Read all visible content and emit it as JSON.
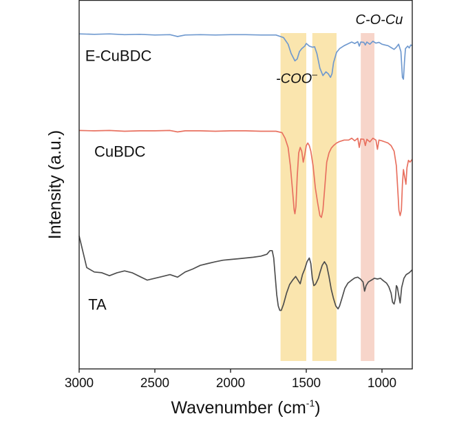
{
  "chart_data": {
    "type": "line",
    "title": "",
    "xlabel": "Wavenumber (cm",
    "xlabel_sup": "-1",
    "xlabel_close": ")",
    "ylabel": "Intensity (a.u.)",
    "xlim": [
      3000,
      800
    ],
    "x_reversed": true,
    "ylim": [
      0,
      1
    ],
    "x_ticks": [
      3000,
      2500,
      2000,
      1500,
      1000
    ],
    "y_ticks_shown": false,
    "grid": false,
    "series": [
      {
        "name": "E-CuBDC",
        "color": "#6f99cf",
        "points": [
          [
            3000,
            0.908
          ],
          [
            2900,
            0.907
          ],
          [
            2800,
            0.908
          ],
          [
            2700,
            0.906
          ],
          [
            2600,
            0.907
          ],
          [
            2500,
            0.905
          ],
          [
            2400,
            0.906
          ],
          [
            2350,
            0.901
          ],
          [
            2300,
            0.905
          ],
          [
            2200,
            0.906
          ],
          [
            2100,
            0.905
          ],
          [
            2000,
            0.906
          ],
          [
            1900,
            0.906
          ],
          [
            1800,
            0.905
          ],
          [
            1700,
            0.905
          ],
          [
            1650,
            0.898
          ],
          [
            1620,
            0.88
          ],
          [
            1600,
            0.855
          ],
          [
            1575,
            0.835
          ],
          [
            1560,
            0.84
          ],
          [
            1545,
            0.86
          ],
          [
            1530,
            0.868
          ],
          [
            1510,
            0.875
          ],
          [
            1500,
            0.882
          ],
          [
            1480,
            0.875
          ],
          [
            1460,
            0.872
          ],
          [
            1445,
            0.873
          ],
          [
            1430,
            0.855
          ],
          [
            1410,
            0.815
          ],
          [
            1390,
            0.795
          ],
          [
            1370,
            0.805
          ],
          [
            1355,
            0.8
          ],
          [
            1340,
            0.79
          ],
          [
            1330,
            0.8
          ],
          [
            1320,
            0.83
          ],
          [
            1300,
            0.858
          ],
          [
            1280,
            0.868
          ],
          [
            1250,
            0.876
          ],
          [
            1220,
            0.882
          ],
          [
            1200,
            0.886
          ],
          [
            1180,
            0.882
          ],
          [
            1160,
            0.887
          ],
          [
            1150,
            0.875
          ],
          [
            1140,
            0.886
          ],
          [
            1120,
            0.885
          ],
          [
            1110,
            0.878
          ],
          [
            1100,
            0.886
          ],
          [
            1080,
            0.88
          ],
          [
            1060,
            0.888
          ],
          [
            1040,
            0.883
          ],
          [
            1020,
            0.885
          ],
          [
            1000,
            0.88
          ],
          [
            980,
            0.878
          ],
          [
            960,
            0.876
          ],
          [
            940,
            0.871
          ],
          [
            920,
            0.866
          ],
          [
            905,
            0.872
          ],
          [
            890,
            0.88
          ],
          [
            875,
            0.86
          ],
          [
            865,
            0.79
          ],
          [
            858,
            0.785
          ],
          [
            852,
            0.83
          ],
          [
            845,
            0.868
          ],
          [
            830,
            0.875
          ],
          [
            820,
            0.87
          ],
          [
            810,
            0.878
          ],
          [
            800,
            0.876
          ]
        ]
      },
      {
        "name": "CuBDC",
        "color": "#e8705f",
        "points": [
          [
            3000,
            0.646
          ],
          [
            2900,
            0.645
          ],
          [
            2800,
            0.646
          ],
          [
            2700,
            0.644
          ],
          [
            2600,
            0.645
          ],
          [
            2500,
            0.645
          ],
          [
            2400,
            0.646
          ],
          [
            2350,
            0.642
          ],
          [
            2300,
            0.645
          ],
          [
            2200,
            0.645
          ],
          [
            2100,
            0.644
          ],
          [
            2000,
            0.645
          ],
          [
            1900,
            0.645
          ],
          [
            1800,
            0.644
          ],
          [
            1700,
            0.644
          ],
          [
            1660,
            0.64
          ],
          [
            1640,
            0.625
          ],
          [
            1620,
            0.6
          ],
          [
            1605,
            0.55
          ],
          [
            1590,
            0.48
          ],
          [
            1580,
            0.43
          ],
          [
            1575,
            0.42
          ],
          [
            1568,
            0.44
          ],
          [
            1560,
            0.52
          ],
          [
            1550,
            0.585
          ],
          [
            1540,
            0.6
          ],
          [
            1530,
            0.59
          ],
          [
            1520,
            0.56
          ],
          [
            1510,
            0.58
          ],
          [
            1500,
            0.605
          ],
          [
            1490,
            0.612
          ],
          [
            1480,
            0.605
          ],
          [
            1470,
            0.59
          ],
          [
            1455,
            0.55
          ],
          [
            1440,
            0.49
          ],
          [
            1425,
            0.45
          ],
          [
            1410,
            0.415
          ],
          [
            1400,
            0.41
          ],
          [
            1390,
            0.43
          ],
          [
            1378,
            0.49
          ],
          [
            1365,
            0.56
          ],
          [
            1350,
            0.585
          ],
          [
            1335,
            0.598
          ],
          [
            1320,
            0.605
          ],
          [
            1300,
            0.612
          ],
          [
            1280,
            0.616
          ],
          [
            1250,
            0.62
          ],
          [
            1220,
            0.62
          ],
          [
            1200,
            0.625
          ],
          [
            1180,
            0.618
          ],
          [
            1160,
            0.625
          ],
          [
            1150,
            0.6
          ],
          [
            1140,
            0.623
          ],
          [
            1120,
            0.622
          ],
          [
            1110,
            0.605
          ],
          [
            1100,
            0.622
          ],
          [
            1080,
            0.615
          ],
          [
            1060,
            0.625
          ],
          [
            1040,
            0.62
          ],
          [
            1030,
            0.595
          ],
          [
            1020,
            0.62
          ],
          [
            1000,
            0.618
          ],
          [
            980,
            0.615
          ],
          [
            960,
            0.612
          ],
          [
            940,
            0.605
          ],
          [
            920,
            0.59
          ],
          [
            905,
            0.55
          ],
          [
            895,
            0.48
          ],
          [
            888,
            0.43
          ],
          [
            880,
            0.415
          ],
          [
            872,
            0.43
          ],
          [
            865,
            0.5
          ],
          [
            858,
            0.54
          ],
          [
            850,
            0.52
          ],
          [
            842,
            0.5
          ],
          [
            835,
            0.545
          ],
          [
            825,
            0.565
          ],
          [
            815,
            0.56
          ],
          [
            800,
            0.568
          ]
        ]
      },
      {
        "name": "TA",
        "color": "#4d4d4d",
        "points": [
          [
            3000,
            0.36
          ],
          [
            2950,
            0.274
          ],
          [
            2900,
            0.262
          ],
          [
            2850,
            0.26
          ],
          [
            2800,
            0.252
          ],
          [
            2750,
            0.26
          ],
          [
            2700,
            0.265
          ],
          [
            2650,
            0.26
          ],
          [
            2600,
            0.25
          ],
          [
            2550,
            0.24
          ],
          [
            2500,
            0.245
          ],
          [
            2450,
            0.25
          ],
          [
            2400,
            0.255
          ],
          [
            2350,
            0.248
          ],
          [
            2300,
            0.262
          ],
          [
            2250,
            0.27
          ],
          [
            2200,
            0.28
          ],
          [
            2150,
            0.285
          ],
          [
            2100,
            0.29
          ],
          [
            2050,
            0.294
          ],
          [
            2000,
            0.296
          ],
          [
            1950,
            0.298
          ],
          [
            1900,
            0.3
          ],
          [
            1850,
            0.302
          ],
          [
            1800,
            0.305
          ],
          [
            1760,
            0.31
          ],
          [
            1740,
            0.32
          ],
          [
            1725,
            0.32
          ],
          [
            1715,
            0.3
          ],
          [
            1705,
            0.25
          ],
          [
            1695,
            0.2
          ],
          [
            1685,
            0.17
          ],
          [
            1675,
            0.158
          ],
          [
            1665,
            0.158
          ],
          [
            1650,
            0.175
          ],
          [
            1630,
            0.205
          ],
          [
            1610,
            0.228
          ],
          [
            1590,
            0.24
          ],
          [
            1570,
            0.25
          ],
          [
            1555,
            0.24
          ],
          [
            1540,
            0.23
          ],
          [
            1525,
            0.255
          ],
          [
            1510,
            0.27
          ],
          [
            1495,
            0.29
          ],
          [
            1480,
            0.3
          ],
          [
            1470,
            0.285
          ],
          [
            1460,
            0.245
          ],
          [
            1450,
            0.225
          ],
          [
            1440,
            0.228
          ],
          [
            1430,
            0.236
          ],
          [
            1420,
            0.245
          ],
          [
            1410,
            0.26
          ],
          [
            1395,
            0.28
          ],
          [
            1380,
            0.29
          ],
          [
            1365,
            0.28
          ],
          [
            1350,
            0.25
          ],
          [
            1335,
            0.215
          ],
          [
            1320,
            0.19
          ],
          [
            1305,
            0.17
          ],
          [
            1290,
            0.162
          ],
          [
            1280,
            0.17
          ],
          [
            1265,
            0.19
          ],
          [
            1245,
            0.218
          ],
          [
            1225,
            0.232
          ],
          [
            1200,
            0.24
          ],
          [
            1180,
            0.246
          ],
          [
            1160,
            0.248
          ],
          [
            1140,
            0.242
          ],
          [
            1125,
            0.235
          ],
          [
            1115,
            0.21
          ],
          [
            1105,
            0.225
          ],
          [
            1090,
            0.235
          ],
          [
            1070,
            0.24
          ],
          [
            1050,
            0.245
          ],
          [
            1030,
            0.243
          ],
          [
            1010,
            0.245
          ],
          [
            990,
            0.238
          ],
          [
            970,
            0.232
          ],
          [
            955,
            0.222
          ],
          [
            940,
            0.205
          ],
          [
            930,
            0.18
          ],
          [
            920,
            0.175
          ],
          [
            912,
            0.19
          ],
          [
            905,
            0.225
          ],
          [
            898,
            0.22
          ],
          [
            890,
            0.2
          ],
          [
            880,
            0.178
          ],
          [
            870,
            0.22
          ],
          [
            855,
            0.245
          ],
          [
            840,
            0.255
          ],
          [
            820,
            0.26
          ],
          [
            800,
            0.268
          ]
        ]
      }
    ],
    "highlight_bands": [
      {
        "from": 1670,
        "to": 1500,
        "color": "#f5d06b",
        "opacity": 0.55
      },
      {
        "from": 1460,
        "to": 1300,
        "color": "#f5d06b",
        "opacity": 0.55
      },
      {
        "from": 1140,
        "to": 1050,
        "color": "#f2b9a6",
        "opacity": 0.6
      }
    ],
    "series_labels": [
      {
        "text": "E-CuBDC",
        "x": 2960,
        "y": 0.835
      },
      {
        "text": "CuBDC",
        "x": 2900,
        "y": 0.575
      },
      {
        "text": "TA",
        "x": 2940,
        "y": 0.16
      }
    ],
    "annotations": [
      {
        "text": "-COO",
        "sup": "–",
        "x": 1700,
        "y": 0.775
      },
      {
        "text": "C-O-Cu",
        "x": 1175,
        "y": 0.935
      }
    ]
  }
}
